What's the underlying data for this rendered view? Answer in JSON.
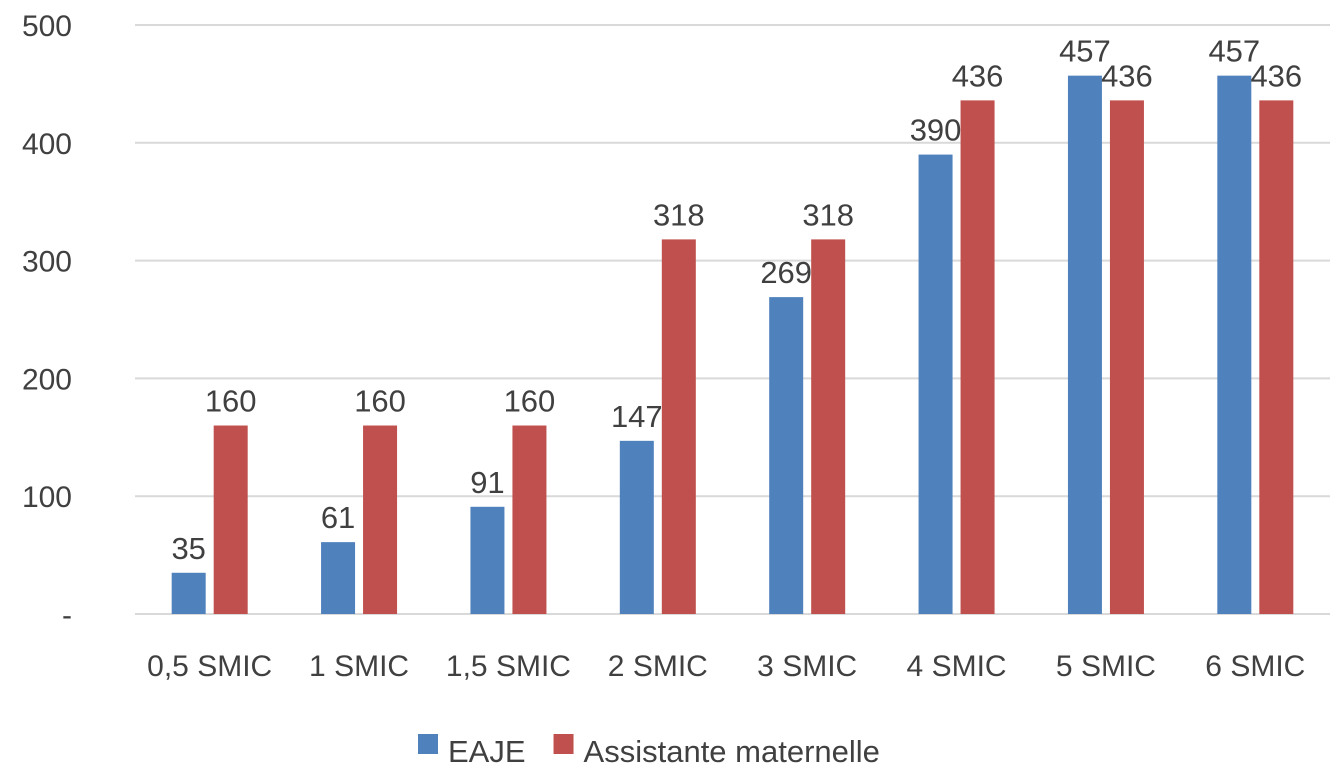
{
  "chart_data": {
    "type": "bar",
    "categories": [
      "0,5 SMIC",
      "1 SMIC",
      "1,5 SMIC",
      "2 SMIC",
      "3 SMIC",
      "4 SMIC",
      "5 SMIC",
      "6 SMIC"
    ],
    "series": [
      {
        "name": "EAJE",
        "values": [
          35,
          61,
          91,
          147,
          269,
          390,
          457,
          457
        ],
        "color": "#4F81BD"
      },
      {
        "name": "Assistante maternelle",
        "values": [
          160,
          160,
          160,
          318,
          318,
          436,
          436,
          436
        ],
        "color": "#C0504D"
      }
    ],
    "yticks": [
      "-",
      "100",
      "200",
      "300",
      "400",
      "500"
    ],
    "ylim": [
      0,
      500
    ],
    "grid": true,
    "legend_position": "bottom",
    "data_labels": true
  }
}
